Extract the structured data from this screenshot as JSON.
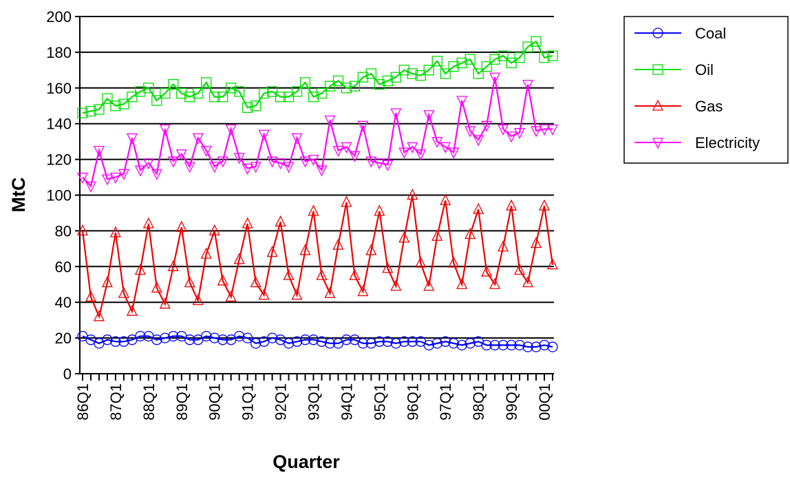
{
  "chart_data": {
    "type": "line",
    "x_label": "Quarter",
    "y_label": "MtC",
    "categories": [
      "86Q1",
      null,
      null,
      null,
      "87Q1",
      null,
      null,
      null,
      "88Q1",
      null,
      null,
      null,
      "89Q1",
      null,
      null,
      null,
      "90Q1",
      null,
      null,
      null,
      "91Q1",
      null,
      null,
      null,
      "92Q1",
      null,
      null,
      null,
      "93Q1",
      null,
      null,
      null,
      "94Q1",
      null,
      null,
      null,
      "95Q1",
      null,
      null,
      null,
      "96Q1",
      null,
      null,
      null,
      "97Q1",
      null,
      null,
      null,
      "98Q1",
      null,
      null,
      null,
      "99Q1",
      null,
      null,
      null,
      "00Q1",
      null
    ],
    "ylim": [
      0,
      200
    ],
    "yticks": [
      0,
      20,
      40,
      60,
      80,
      100,
      120,
      140,
      160,
      180,
      200
    ],
    "grid": true,
    "legend": "right",
    "series": [
      {
        "name": "Coal",
        "color": "#0000ff",
        "marker": "circle",
        "values": [
          21,
          19,
          17,
          19,
          18,
          18,
          19,
          21,
          21,
          19,
          20,
          21,
          21,
          19,
          19,
          21,
          20,
          19,
          19,
          21,
          20,
          17,
          18,
          20,
          19,
          17,
          18,
          19,
          19,
          18,
          17,
          17,
          19,
          19,
          17,
          17,
          18,
          18,
          17,
          18,
          18,
          18,
          16,
          17,
          18,
          17,
          16,
          17,
          18,
          16,
          16,
          16,
          16,
          16,
          15,
          15,
          16,
          15
        ]
      },
      {
        "name": "Oil",
        "color": "#00dd00",
        "marker": "square",
        "values": [
          146,
          147,
          148,
          154,
          150,
          151,
          155,
          158,
          160,
          153,
          157,
          162,
          157,
          155,
          157,
          163,
          155,
          155,
          160,
          158,
          149,
          150,
          157,
          158,
          155,
          155,
          158,
          163,
          155,
          157,
          161,
          164,
          160,
          161,
          166,
          168,
          162,
          164,
          166,
          170,
          168,
          167,
          170,
          175,
          168,
          172,
          174,
          176,
          168,
          172,
          176,
          178,
          174,
          177,
          183,
          186,
          177,
          178
        ]
      },
      {
        "name": "Gas",
        "color": "#ee0000",
        "marker": "triangle-up",
        "values": [
          80,
          43,
          32,
          51,
          79,
          45,
          35,
          58,
          84,
          48,
          39,
          60,
          82,
          51,
          41,
          67,
          80,
          52,
          43,
          64,
          84,
          51,
          44,
          68,
          85,
          55,
          44,
          69,
          91,
          55,
          45,
          72,
          96,
          55,
          46,
          69,
          91,
          59,
          49,
          76,
          100,
          62,
          49,
          77,
          97,
          62,
          50,
          78,
          92,
          57,
          50,
          71,
          94,
          58,
          51,
          73,
          94,
          61
        ]
      },
      {
        "name": "Electricity",
        "color": "#ff00ff",
        "marker": "triangle-down",
        "values": [
          110,
          105,
          125,
          109,
          110,
          112,
          132,
          114,
          118,
          112,
          137,
          119,
          123,
          116,
          132,
          125,
          116,
          119,
          137,
          121,
          115,
          116,
          134,
          119,
          118,
          116,
          132,
          119,
          120,
          114,
          142,
          125,
          127,
          122,
          139,
          119,
          118,
          117,
          146,
          124,
          127,
          123,
          145,
          130,
          127,
          124,
          153,
          136,
          131,
          139,
          166,
          137,
          133,
          135,
          162,
          136,
          137,
          137
        ]
      }
    ]
  }
}
